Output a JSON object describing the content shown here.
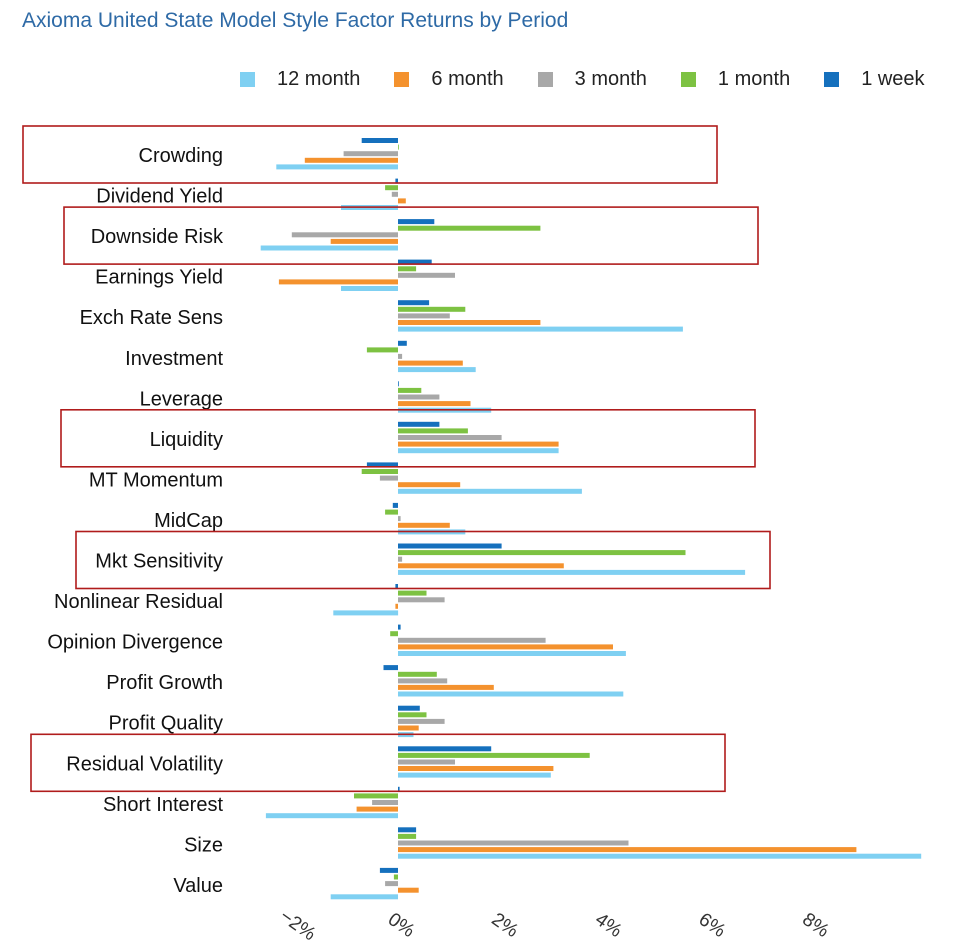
{
  "chart_data": {
    "type": "bar",
    "orientation": "horizontal",
    "title": "Axioma United State Model Style Factor Returns by Period",
    "legend_position": "top",
    "xlabel": "",
    "ylabel": "",
    "xlim": [
      -2.5,
      9.7
    ],
    "x_ticks": [
      -2,
      0,
      2,
      4,
      6,
      8
    ],
    "x_tick_labels": [
      "−2%",
      "0%",
      "2%",
      "4%",
      "6%",
      "8%"
    ],
    "grid": false,
    "categories": [
      "Crowding",
      "Dividend Yield",
      "Downside Risk",
      "Earnings Yield",
      "Exch Rate Sens",
      "Investment",
      "Leverage",
      "Liquidity",
      "MT Momentum",
      "MidCap",
      "Mkt Sensitivity",
      "Nonlinear Residual",
      "Opinion Divergence",
      "Profit Growth",
      "Profit Quality",
      "Residual Volatility",
      "Short Interest",
      "Size",
      "Value"
    ],
    "highlighted": [
      "Crowding",
      "Downside Risk",
      "Liquidity",
      "Mkt Sensitivity",
      "Residual Volatility"
    ],
    "series": [
      {
        "name": "12 month",
        "color": "#7fd0f2",
        "values": [
          -2.35,
          -1.1,
          -2.65,
          -1.1,
          5.5,
          1.5,
          1.8,
          3.1,
          3.55,
          1.3,
          6.7,
          -1.25,
          4.4,
          4.35,
          0.3,
          2.95,
          -2.55,
          10.1,
          -1.3
        ]
      },
      {
        "name": "6 month",
        "color": "#f4922e",
        "values": [
          -1.8,
          0.15,
          -1.3,
          -2.3,
          2.75,
          1.25,
          1.4,
          3.1,
          1.2,
          1.0,
          3.2,
          -0.05,
          4.15,
          1.85,
          0.4,
          3.0,
          -0.8,
          8.85,
          0.4
        ]
      },
      {
        "name": "3 month",
        "color": "#a8a8a8",
        "values": [
          -1.05,
          -0.12,
          -2.05,
          1.1,
          1.0,
          0.08,
          0.8,
          2.0,
          -0.35,
          0.05,
          0.08,
          0.9,
          2.85,
          0.95,
          0.9,
          1.1,
          -0.5,
          4.45,
          -0.25
        ]
      },
      {
        "name": "1 month",
        "color": "#7dc242",
        "values": [
          0.0,
          -0.25,
          2.75,
          0.35,
          1.3,
          -0.6,
          0.45,
          1.35,
          -0.7,
          -0.25,
          5.55,
          0.55,
          -0.15,
          0.75,
          0.55,
          3.7,
          -0.85,
          0.35,
          -0.08
        ]
      },
      {
        "name": "1 week",
        "color": "#1570bd",
        "values": [
          -0.7,
          -0.05,
          0.7,
          0.65,
          0.6,
          0.17,
          0.0,
          0.8,
          -0.6,
          -0.1,
          2.0,
          -0.05,
          0.05,
          -0.28,
          0.42,
          1.8,
          0.03,
          0.35,
          -0.35
        ]
      }
    ]
  }
}
